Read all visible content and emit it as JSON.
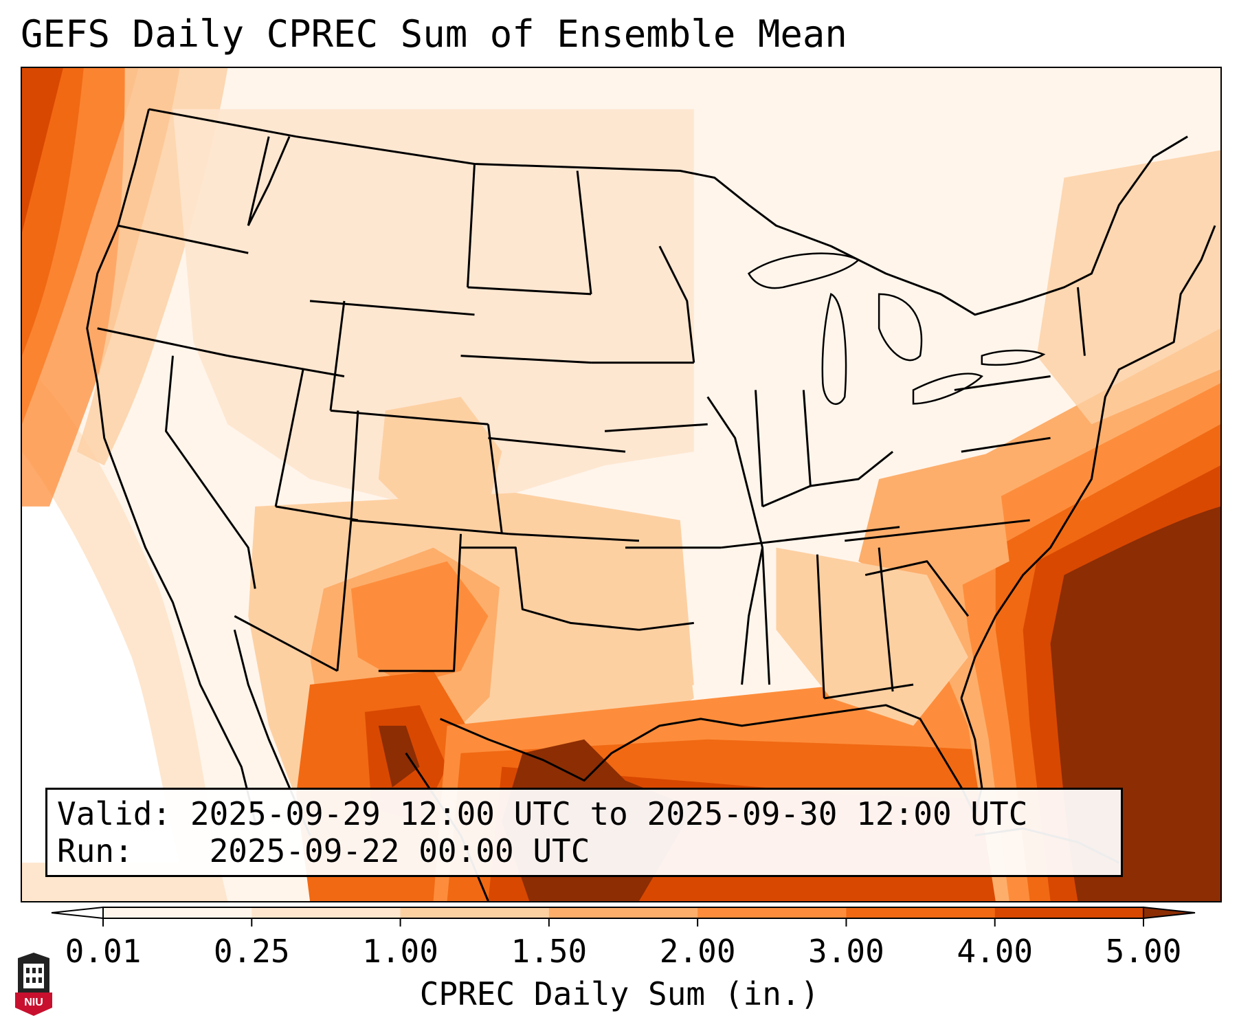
{
  "title": "GEFS Daily CPREC Sum of Ensemble Mean",
  "info": {
    "valid_label": "Valid:",
    "valid_value": "2025-09-29 12:00 UTC to 2025-09-30 12:00 UTC",
    "run_label": "Run:",
    "run_value": "2025-09-22 00:00 UTC"
  },
  "colorbar": {
    "label": "CPREC Daily Sum (in.)",
    "ticks": [
      "0.01",
      "0.25",
      "1.00",
      "1.50",
      "2.00",
      "3.00",
      "4.00",
      "5.00"
    ],
    "colors": [
      "#fff5eb",
      "#fee6ce",
      "#fdd0a2",
      "#fdae6b",
      "#fd8d3c",
      "#f16913",
      "#d94801",
      "#8c2d04"
    ],
    "under_color": "#ffffff",
    "over_color": "#8c2d04"
  },
  "logo": {
    "text": "NIU",
    "colors": {
      "primary": "#c8102e",
      "dark": "#222222"
    }
  }
}
